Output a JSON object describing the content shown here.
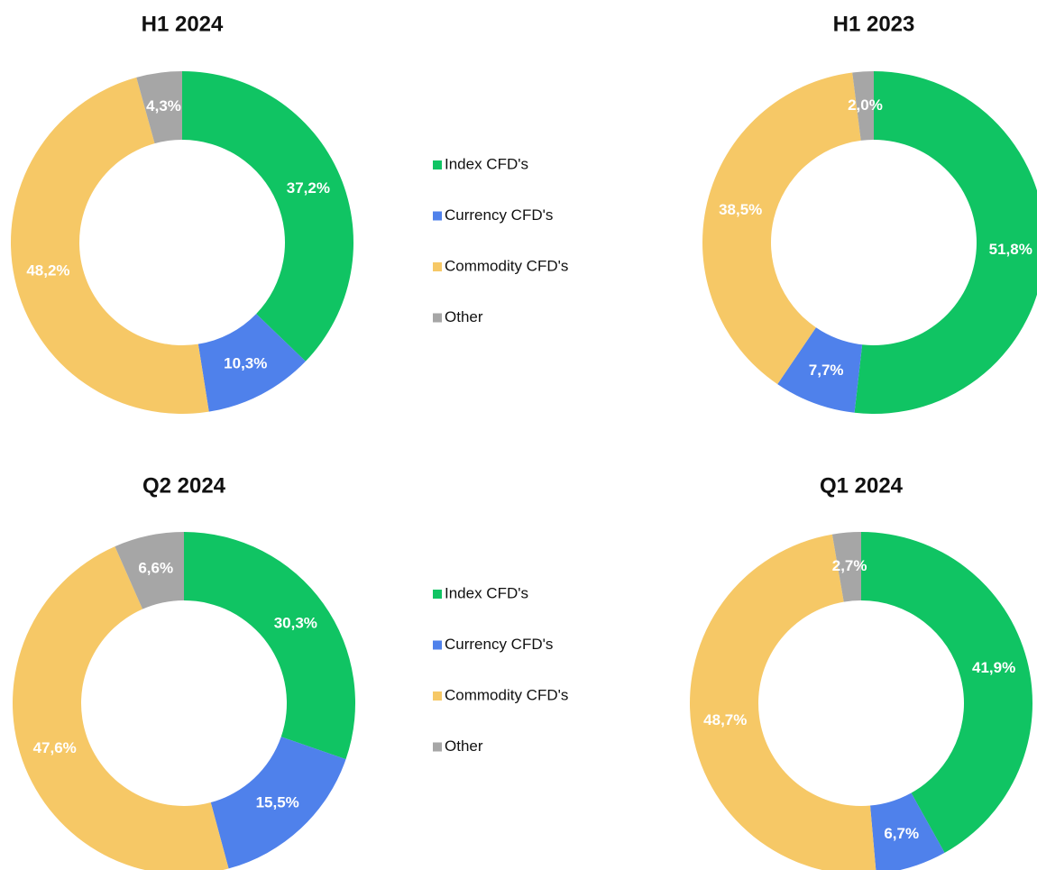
{
  "chart_data": [
    {
      "type": "donut",
      "title": "H1 2024",
      "categories": [
        "Index CFD's",
        "Currency CFD's",
        "Commodity CFD's",
        "Other"
      ],
      "values": [
        37.2,
        10.3,
        48.2,
        4.3
      ],
      "value_labels": [
        "37,2%",
        "10,3%",
        "48,2%",
        "4,3%"
      ],
      "colors": [
        "#10c463",
        "#4f81eb",
        "#f6c866",
        "#a6a6a6"
      ],
      "legend": "right"
    },
    {
      "type": "donut",
      "title": "H1 2023",
      "categories": [
        "Index CFD's",
        "Currency CFD's",
        "Commodity CFD's",
        "Other"
      ],
      "values": [
        51.8,
        7.7,
        38.5,
        2.0
      ],
      "value_labels": [
        "51,8%",
        "7,7%",
        "38,5%",
        "2,0%"
      ],
      "colors": [
        "#10c463",
        "#4f81eb",
        "#f6c866",
        "#a6a6a6"
      ]
    },
    {
      "type": "donut",
      "title": "Q2 2024",
      "categories": [
        "Index CFD's",
        "Currency CFD's",
        "Commodity CFD's",
        "Other"
      ],
      "values": [
        30.3,
        15.5,
        47.6,
        6.6
      ],
      "value_labels": [
        "30,3%",
        "15,5%",
        "47,6%",
        "6,6%"
      ],
      "colors": [
        "#10c463",
        "#4f81eb",
        "#f6c866",
        "#a6a6a6"
      ],
      "legend": "right"
    },
    {
      "type": "donut",
      "title": "Q1 2024",
      "categories": [
        "Index CFD's",
        "Currency CFD's",
        "Commodity CFD's",
        "Other"
      ],
      "values": [
        41.9,
        6.7,
        48.7,
        2.7
      ],
      "value_labels": [
        "41,9%",
        "6,7%",
        "48,7%",
        "2,7%"
      ],
      "colors": [
        "#10c463",
        "#4f81eb",
        "#f6c866",
        "#a6a6a6"
      ]
    }
  ]
}
